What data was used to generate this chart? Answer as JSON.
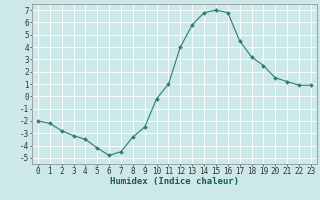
{
  "x": [
    0,
    1,
    2,
    3,
    4,
    5,
    6,
    7,
    8,
    9,
    10,
    11,
    12,
    13,
    14,
    15,
    16,
    17,
    18,
    19,
    20,
    21,
    22,
    23
  ],
  "y": [
    -2.0,
    -2.2,
    -2.8,
    -3.2,
    -3.5,
    -4.2,
    -4.8,
    -4.5,
    -3.3,
    -2.5,
    -0.2,
    1.0,
    4.0,
    5.8,
    6.8,
    7.0,
    6.8,
    4.5,
    3.2,
    2.5,
    1.5,
    1.2,
    0.9,
    0.9
  ],
  "xlabel": "Humidex (Indice chaleur)",
  "line_color": "#2e7d6e",
  "marker": "D",
  "marker_size": 2,
  "bg_color": "#cce8e8",
  "grid_color": "#ffffff",
  "ylim": [
    -5.5,
    7.5
  ],
  "xlim": [
    -0.5,
    23.5
  ],
  "yticks": [
    -5,
    -4,
    -3,
    -2,
    -1,
    0,
    1,
    2,
    3,
    4,
    5,
    6,
    7
  ],
  "xticks": [
    0,
    1,
    2,
    3,
    4,
    5,
    6,
    7,
    8,
    9,
    10,
    11,
    12,
    13,
    14,
    15,
    16,
    17,
    18,
    19,
    20,
    21,
    22,
    23
  ],
  "label_fontsize": 6.5,
  "tick_fontsize": 5.5
}
